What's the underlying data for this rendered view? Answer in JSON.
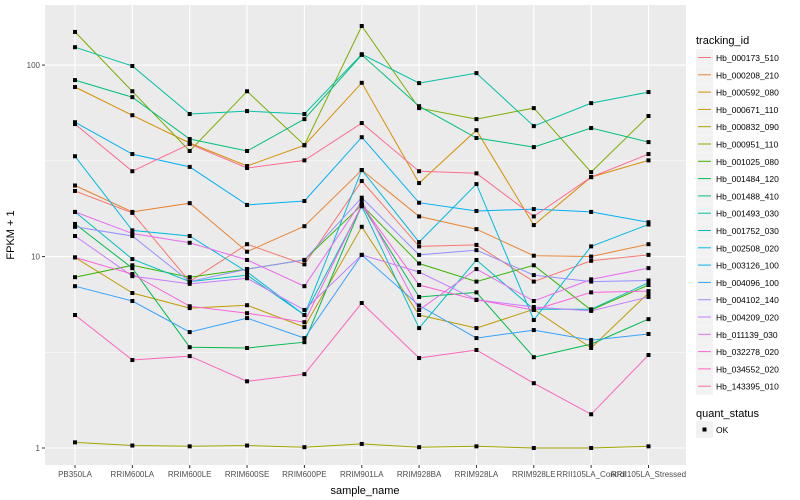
{
  "chart_data": {
    "type": "line",
    "title": "",
    "xlabel": "sample_name",
    "ylabel": "FPKM + 1",
    "y_scale": "log10",
    "ylim": [
      0.815,
      206
    ],
    "y_ticks": [
      1,
      10,
      100
    ],
    "y_tick_labels": [
      "1",
      "10",
      "100"
    ],
    "grid": true,
    "legend_placement": "right",
    "categories": [
      "PB350LA",
      "RRIM600LA",
      "RRIM600LE",
      "RRIM600SE",
      "RRIM600PE",
      "RRIM901LA",
      "RRIM928BA",
      "RRIM928LA",
      "RRIM928LE",
      "RRII105LA_Control",
      "RRII105LA_Stressed"
    ],
    "legend_title": "tracking_id",
    "series": [
      {
        "name": "Hb_000173_510",
        "color": "#F8766D",
        "values": [
          22,
          16.9,
          7.4,
          11.6,
          9.1,
          24.8,
          11.3,
          11.5,
          7.4,
          9.5,
          10.2
        ]
      },
      {
        "name": "Hb_000208_210",
        "color": "#EA8331",
        "values": [
          23.5,
          17.1,
          19,
          10.6,
          14.4,
          28.3,
          16.2,
          13.9,
          10.1,
          10,
          11.6
        ]
      },
      {
        "name": "Hb_000592_080",
        "color": "#D89000",
        "values": [
          76.8,
          54.7,
          39.2,
          29.7,
          38.1,
          80.8,
          24.2,
          45.7,
          14.6,
          26,
          31.8
        ]
      },
      {
        "name": "Hb_000671_110",
        "color": "#C09B00",
        "values": [
          9.9,
          6.45,
          5.38,
          5.57,
          4.28,
          14.3,
          4.95,
          4.23,
          5.3,
          3.33,
          6.45
        ]
      },
      {
        "name": "Hb_000832_090",
        "color": "#A3A500",
        "values": [
          1.07,
          1.03,
          1.02,
          1.03,
          1.01,
          1.05,
          1.01,
          1.02,
          1.0,
          1.0,
          1.02
        ]
      },
      {
        "name": "Hb_000951_110",
        "color": "#7CAE00",
        "values": [
          149,
          73,
          35.6,
          73,
          38.2,
          160,
          59.6,
          52.2,
          59.6,
          27.6,
          54.2
        ]
      },
      {
        "name": "Hb_001025_080",
        "color": "#39B600",
        "values": [
          7.8,
          9,
          7.8,
          8.6,
          9.6,
          18.6,
          9.2,
          7.4,
          9,
          5.26,
          7.1
        ]
      },
      {
        "name": "Hb_001484_120",
        "color": "#00BB4E",
        "values": [
          14.8,
          8.7,
          3.36,
          3.33,
          3.57,
          18.6,
          6.15,
          6.5,
          2.98,
          3.49,
          4.71
        ]
      },
      {
        "name": "Hb_001488_410",
        "color": "#00BF7D",
        "values": [
          83.5,
          68,
          41.1,
          35.6,
          52.2,
          113,
          61,
          41.6,
          37.3,
          46.9,
          39.6
        ]
      },
      {
        "name": "Hb_001493_030",
        "color": "#00C1A3",
        "values": [
          124,
          98.9,
          55.5,
          57.5,
          55.5,
          114,
          80.5,
          90.8,
          48,
          63.3,
          72.3
        ]
      },
      {
        "name": "Hb_001752_030",
        "color": "#00BFC4",
        "values": [
          17.1,
          9.7,
          7.4,
          8,
          4.95,
          18.3,
          4.23,
          9.6,
          5.3,
          5.3,
          7.3
        ]
      },
      {
        "name": "Hb_002508_020",
        "color": "#00BAE0",
        "values": [
          33.4,
          13.7,
          12.8,
          8.3,
          4.95,
          28.3,
          11.9,
          23.9,
          4.66,
          11.3,
          14.7
        ]
      },
      {
        "name": "Hb_003126_100",
        "color": "#00B0F6",
        "values": [
          50.3,
          34.3,
          29.4,
          18.6,
          19.5,
          42,
          19.1,
          17.3,
          17.7,
          17.1,
          15.1
        ]
      },
      {
        "name": "Hb_004096_100",
        "color": "#35A2FF",
        "values": [
          7.0,
          5.86,
          4.03,
          4.77,
          3.75,
          10.2,
          5.55,
          3.75,
          4.13,
          3.66,
          3.94
        ]
      },
      {
        "name": "Hb_004102_140",
        "color": "#9590FF",
        "values": [
          14.3,
          12.8,
          7.4,
          8.6,
          9.6,
          20.3,
          10.2,
          10.8,
          8,
          7.4,
          7.5
        ]
      },
      {
        "name": "Hb_004209_020",
        "color": "#C77CFF",
        "values": [
          12.8,
          7.9,
          7.2,
          7.7,
          5.26,
          10.2,
          8.3,
          5.94,
          5.45,
          5.2,
          6.15
        ]
      },
      {
        "name": "Hb_011139_030",
        "color": "#E76BF3",
        "values": [
          17.1,
          13.2,
          11.8,
          9.6,
          7.0,
          19.5,
          5.26,
          8.6,
          5.86,
          7.6,
          8.7
        ]
      },
      {
        "name": "Hb_032278_020",
        "color": "#FA62DB",
        "values": [
          9.9,
          8.1,
          5.5,
          5.06,
          4.54,
          18.6,
          7.1,
          5.94,
          5.26,
          6.5,
          6.6
        ]
      },
      {
        "name": "Hb_034552_020",
        "color": "#FF62BC",
        "values": [
          4.95,
          2.88,
          3.02,
          2.23,
          2.43,
          5.72,
          2.95,
          3.25,
          2.18,
          1.5,
          3.06
        ]
      },
      {
        "name": "Hb_143395_010",
        "color": "#FF6C91",
        "values": [
          49.2,
          27.9,
          38.7,
          29,
          31.8,
          49.8,
          27.9,
          27.2,
          16.2,
          26,
          34.3
        ]
      }
    ],
    "shape_legend": {
      "title": "quant_status",
      "items": [
        "OK"
      ]
    }
  }
}
